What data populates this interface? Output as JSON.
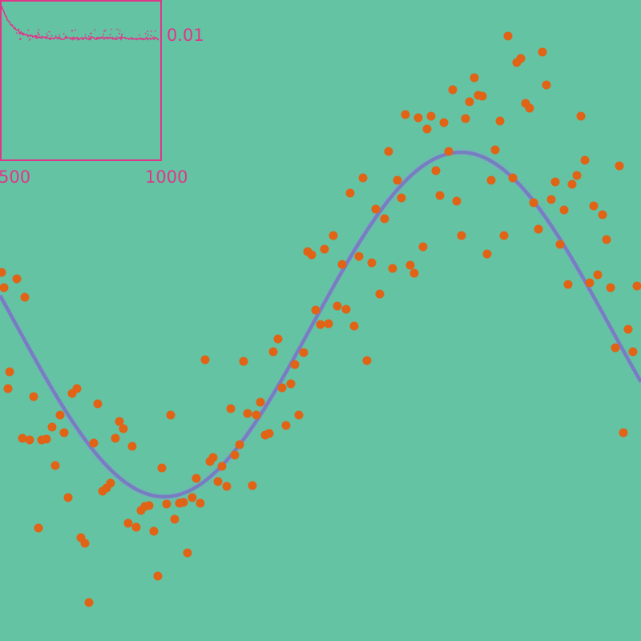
{
  "colors": {
    "background": "#64c3a3",
    "points": "#e06316",
    "fit": "#7a72c6",
    "band": "#8aa0d6",
    "inset": "#e0368a"
  },
  "chart_data": [
    {
      "type": "scatter",
      "title": "",
      "xlabel": "",
      "ylabel": "",
      "xlim": [
        0,
        800
      ],
      "ylim": [
        0,
        800
      ],
      "grid": false,
      "legend": "none",
      "points": [
        [
          2,
          340
        ],
        [
          5,
          359
        ],
        [
          21,
          348
        ],
        [
          31,
          371
        ],
        [
          12,
          464
        ],
        [
          10,
          485
        ],
        [
          42,
          495
        ],
        [
          28,
          547
        ],
        [
          37,
          549
        ],
        [
          52,
          549
        ],
        [
          58,
          548
        ],
        [
          65,
          533
        ],
        [
          75,
          518
        ],
        [
          80,
          540
        ],
        [
          69,
          581
        ],
        [
          85,
          621
        ],
        [
          90,
          491
        ],
        [
          96,
          485
        ],
        [
          48,
          659
        ],
        [
          101,
          671
        ],
        [
          106,
          678
        ],
        [
          111,
          752
        ],
        [
          117,
          553
        ],
        [
          122,
          504
        ],
        [
          128,
          613
        ],
        [
          133,
          609
        ],
        [
          138,
          603
        ],
        [
          144,
          547
        ],
        [
          149,
          526
        ],
        [
          154,
          535
        ],
        [
          165,
          557
        ],
        [
          160,
          653
        ],
        [
          170,
          658
        ],
        [
          176,
          637
        ],
        [
          181,
          632
        ],
        [
          186,
          631
        ],
        [
          192,
          663
        ],
        [
          197,
          719
        ],
        [
          202,
          584
        ],
        [
          208,
          629
        ],
        [
          213,
          518
        ],
        [
          218,
          648
        ],
        [
          224,
          628
        ],
        [
          229,
          627
        ],
        [
          234,
          690
        ],
        [
          240,
          621
        ],
        [
          245,
          597
        ],
        [
          250,
          628
        ],
        [
          256,
          449
        ],
        [
          262,
          576
        ],
        [
          266,
          571
        ],
        [
          272,
          601
        ],
        [
          277,
          582
        ],
        [
          283,
          607
        ],
        [
          288,
          510
        ],
        [
          293,
          568
        ],
        [
          299,
          555
        ],
        [
          304,
          451
        ],
        [
          309,
          516
        ],
        [
          315,
          606
        ],
        [
          320,
          518
        ],
        [
          325,
          502
        ],
        [
          331,
          543
        ],
        [
          336,
          541
        ],
        [
          341,
          439
        ],
        [
          347,
          423
        ],
        [
          352,
          484
        ],
        [
          357,
          531
        ],
        [
          363,
          479
        ],
        [
          368,
          455
        ],
        [
          373,
          518
        ],
        [
          379,
          440
        ],
        [
          384,
          314
        ],
        [
          389,
          318
        ],
        [
          394,
          387
        ],
        [
          400,
          405
        ],
        [
          405,
          311
        ],
        [
          410,
          404
        ],
        [
          416,
          294
        ],
        [
          421,
          382
        ],
        [
          427,
          330
        ],
        [
          432,
          386
        ],
        [
          437,
          241
        ],
        [
          442,
          407
        ],
        [
          448,
          320
        ],
        [
          453,
          222
        ],
        [
          458,
          450
        ],
        [
          464,
          328
        ],
        [
          469,
          261
        ],
        [
          474,
          367
        ],
        [
          480,
          273
        ],
        [
          485,
          189
        ],
        [
          490,
          335
        ],
        [
          496,
          225
        ],
        [
          501,
          247
        ],
        [
          506,
          143
        ],
        [
          512,
          331
        ],
        [
          517,
          341
        ],
        [
          522,
          147
        ],
        [
          528,
          308
        ],
        [
          533,
          161
        ],
        [
          538,
          145
        ],
        [
          544,
          213
        ],
        [
          549,
          244
        ],
        [
          554,
          153
        ],
        [
          560,
          189
        ],
        [
          565,
          112
        ],
        [
          570,
          251
        ],
        [
          576,
          294
        ],
        [
          581,
          148
        ],
        [
          586,
          127
        ],
        [
          592,
          97
        ],
        [
          597,
          119
        ],
        [
          602,
          120
        ],
        [
          608,
          317
        ],
        [
          613,
          225
        ],
        [
          618,
          187
        ],
        [
          624,
          151
        ],
        [
          629,
          294
        ],
        [
          634,
          45
        ],
        [
          640,
          222
        ],
        [
          645,
          78
        ],
        [
          650,
          73
        ],
        [
          656,
          129
        ],
        [
          661,
          135
        ],
        [
          666,
          253
        ],
        [
          672,
          286
        ],
        [
          677,
          65
        ],
        [
          682,
          106
        ],
        [
          688,
          249
        ],
        [
          693,
          227
        ],
        [
          699,
          305
        ],
        [
          704,
          262
        ],
        [
          709,
          355
        ],
        [
          714,
          230
        ],
        [
          720,
          219
        ],
        [
          725,
          145
        ],
        [
          730,
          200
        ],
        [
          736,
          353
        ],
        [
          741,
          257
        ],
        [
          746,
          343
        ],
        [
          752,
          268
        ],
        [
          757,
          299
        ],
        [
          762,
          359
        ],
        [
          768,
          434
        ],
        [
          773,
          207
        ],
        [
          778,
          540
        ],
        [
          784,
          411
        ],
        [
          790,
          439
        ],
        [
          795,
          357
        ]
      ]
    },
    {
      "type": "line",
      "title": "",
      "xlabel": "",
      "ylabel": "",
      "x_ticks": [
        "500",
        "1000"
      ],
      "y_ticks": [
        "0.01"
      ],
      "xlim": [
        0,
        1000
      ],
      "ylim": [
        0,
        0.1
      ],
      "grid": false,
      "legend": "none"
    }
  ]
}
